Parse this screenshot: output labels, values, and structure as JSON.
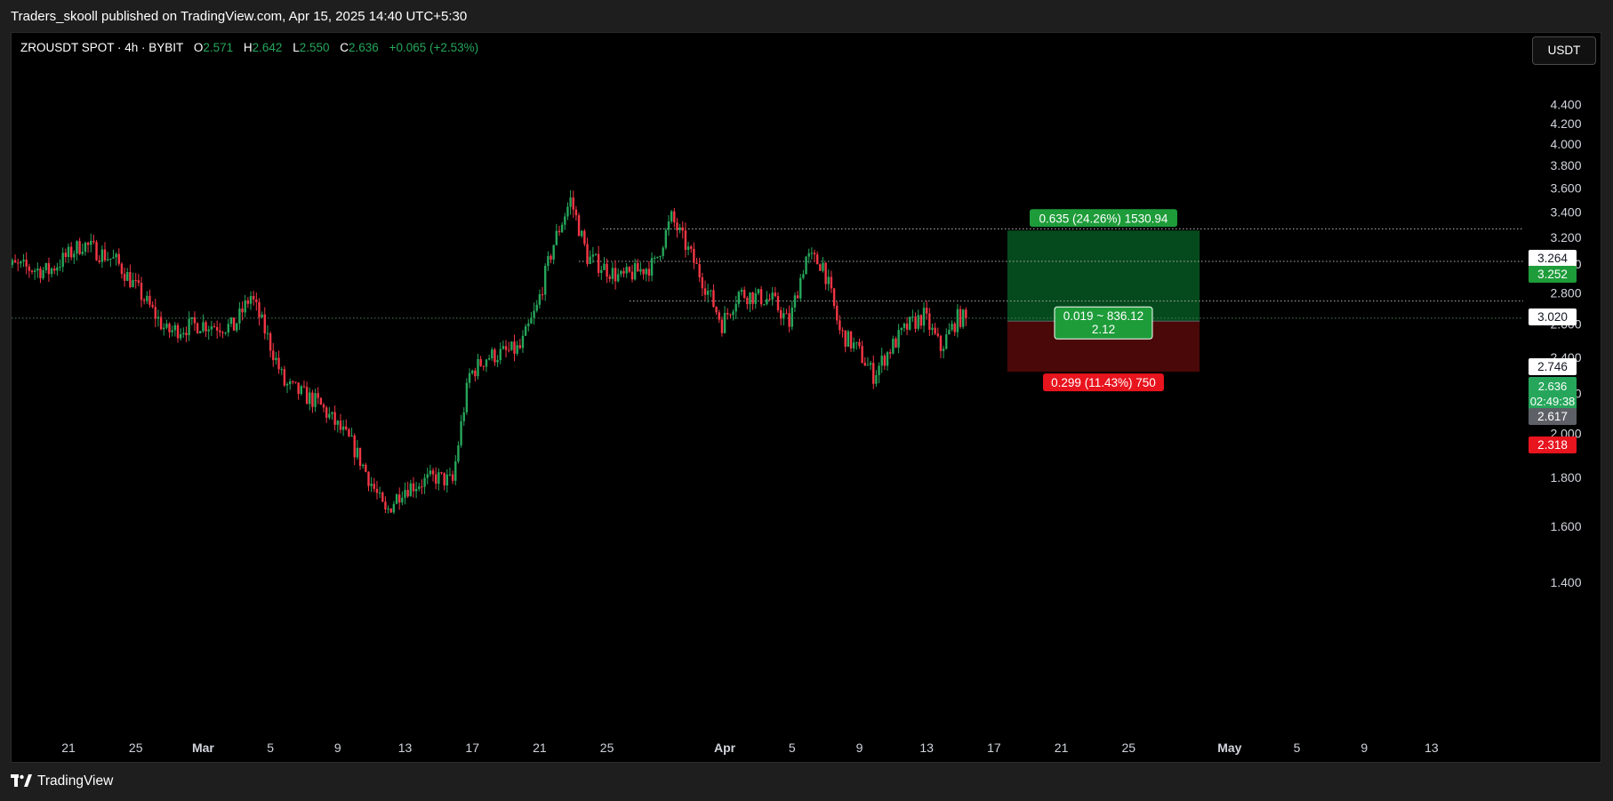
{
  "header": {
    "published": "Traders_skooll published on TradingView.com, Apr 15, 2025 14:40 UTC+5:30"
  },
  "legend": {
    "symbol": "ZROUSDT SPOT · 4h · BYBIT",
    "open_label": "O",
    "open": "2.571",
    "high_label": "H",
    "high": "2.642",
    "low_label": "L",
    "low": "2.550",
    "close_label": "C",
    "close": "2.636",
    "change": "+0.065 (+2.53%)"
  },
  "currency": "USDT",
  "footer": {
    "brand": "TradingView"
  },
  "price_tags": {
    "p1": "3.264",
    "target": "3.252",
    "p2": "3.020",
    "p3": "2.746",
    "current": "2.636",
    "countdown": "02:49:38",
    "entry": "2.617",
    "stop": "2.318"
  },
  "position": {
    "target_label": "0.635 (24.26%) 1530.94",
    "mid_label_1": "0.019 ~ 836.12",
    "mid_label_2": "2.12",
    "stop_label": "0.299 (11.43%) 750"
  },
  "chart_data": {
    "type": "candlestick",
    "timeframe": "4h",
    "y_ticks": [
      1.4,
      1.6,
      1.8,
      2.0,
      2.2,
      2.4,
      2.6,
      2.8,
      3.0,
      3.2,
      3.4,
      3.6,
      3.8,
      4.0,
      4.2,
      4.4
    ],
    "y_tick_labels": [
      "1.400",
      "1.600",
      "1.800",
      "2.000",
      "2.200",
      "2.400",
      "2.600",
      "2.800",
      "3.000",
      "3.200",
      "3.400",
      "3.600",
      "3.800",
      "4.000",
      "4.200",
      "4.400"
    ],
    "x_ticks": [
      "21",
      "25",
      "Mar",
      "5",
      "9",
      "13",
      "17",
      "21",
      "25",
      "Apr",
      "5",
      "9",
      "13",
      "17",
      "21",
      "25",
      "May",
      "5",
      "9",
      "13"
    ],
    "x_tick_dates": [
      "2025-02-21",
      "2025-02-25",
      "2025-03-01",
      "2025-03-05",
      "2025-03-09",
      "2025-03-13",
      "2025-03-17",
      "2025-03-21",
      "2025-03-25",
      "2025-04-01",
      "2025-04-05",
      "2025-04-09",
      "2025-04-13",
      "2025-04-17",
      "2025-04-21",
      "2025-04-25",
      "2025-05-01",
      "2025-05-05",
      "2025-05-09",
      "2025-05-13"
    ],
    "x_range": [
      "2025-02-17",
      "2025-05-17"
    ],
    "ylim": [
      1.3,
      4.5
    ],
    "colors": {
      "up": "#26a65b",
      "down": "#f23645"
    },
    "key_points": [
      {
        "date": "2025-02-17",
        "price": 3.0
      },
      {
        "date": "2025-02-20",
        "price": 2.95
      },
      {
        "date": "2025-02-22",
        "price": 3.15
      },
      {
        "date": "2025-02-24",
        "price": 3.02
      },
      {
        "date": "2025-02-27",
        "price": 2.55
      },
      {
        "date": "2025-03-01",
        "price": 2.6
      },
      {
        "date": "2025-03-03",
        "price": 2.58
      },
      {
        "date": "2025-03-04",
        "price": 2.78
      },
      {
        "date": "2025-03-06",
        "price": 2.25
      },
      {
        "date": "2025-03-08",
        "price": 2.15
      },
      {
        "date": "2025-03-10",
        "price": 1.95
      },
      {
        "date": "2025-03-12",
        "price": 1.65
      },
      {
        "date": "2025-03-13",
        "price": 1.75
      },
      {
        "date": "2025-03-15",
        "price": 1.8
      },
      {
        "date": "2025-03-16",
        "price": 1.78
      },
      {
        "date": "2025-03-17",
        "price": 2.3
      },
      {
        "date": "2025-03-18",
        "price": 2.4
      },
      {
        "date": "2025-03-20",
        "price": 2.45
      },
      {
        "date": "2025-03-21",
        "price": 2.7
      },
      {
        "date": "2025-03-22",
        "price": 3.15
      },
      {
        "date": "2025-03-23",
        "price": 3.5
      },
      {
        "date": "2025-03-24",
        "price": 3.05
      },
      {
        "date": "2025-03-26",
        "price": 2.9
      },
      {
        "date": "2025-03-28",
        "price": 3.0
      },
      {
        "date": "2025-03-29",
        "price": 3.35
      },
      {
        "date": "2025-03-31",
        "price": 2.85
      },
      {
        "date": "2025-04-01",
        "price": 2.6
      },
      {
        "date": "2025-04-02",
        "price": 2.8
      },
      {
        "date": "2025-04-04",
        "price": 2.75
      },
      {
        "date": "2025-04-05",
        "price": 2.6
      },
      {
        "date": "2025-04-06",
        "price": 3.05
      },
      {
        "date": "2025-04-07",
        "price": 3.0
      },
      {
        "date": "2025-04-08",
        "price": 2.55
      },
      {
        "date": "2025-04-09",
        "price": 2.45
      },
      {
        "date": "2025-04-10",
        "price": 2.3
      },
      {
        "date": "2025-04-11",
        "price": 2.45
      },
      {
        "date": "2025-04-12",
        "price": 2.58
      },
      {
        "date": "2025-04-13",
        "price": 2.65
      },
      {
        "date": "2025-04-14",
        "price": 2.45
      },
      {
        "date": "2025-04-15",
        "price": 2.636
      }
    ],
    "horizontal_lines": [
      3.264,
      3.02,
      2.746,
      2.636
    ],
    "position": {
      "start": "2025-04-17",
      "end": "2025-04-28",
      "entry": 2.617,
      "target": 3.252,
      "stop": 2.318,
      "profit_color": "#054a1c",
      "loss_color": "#4a0808"
    }
  }
}
